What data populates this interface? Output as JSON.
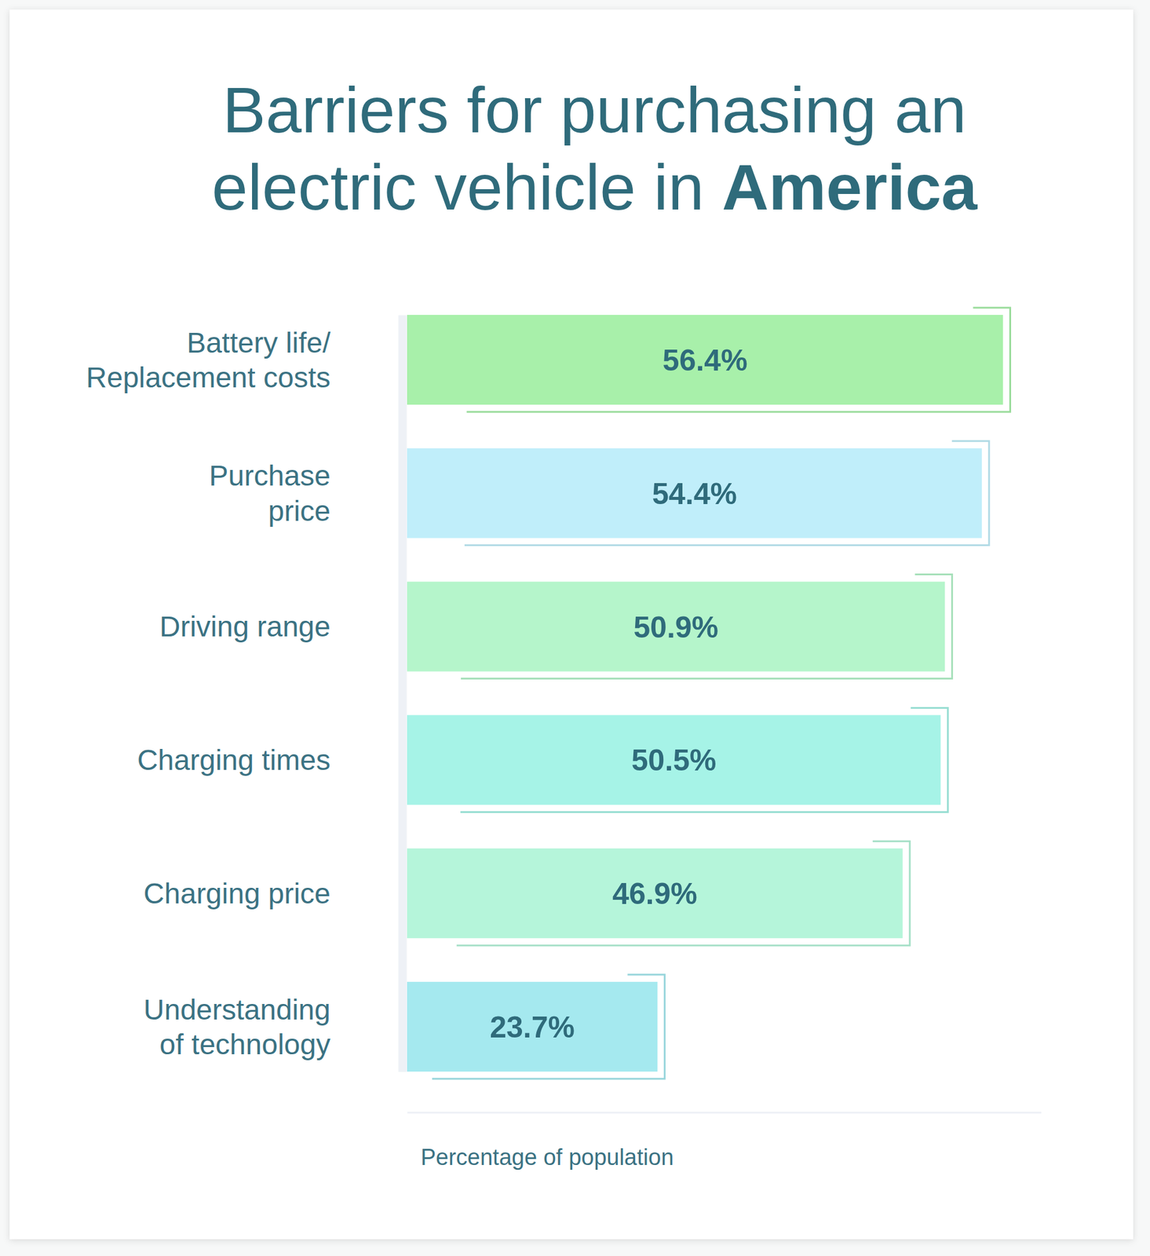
{
  "chart_data": {
    "type": "bar",
    "orientation": "horizontal",
    "title": "Barriers for purchasing an\nelectric vehicle in America",
    "categories": [
      "Battery life/\nReplacement costs",
      "Purchase\nprice",
      "Driving range",
      "Charging times",
      "Charging price",
      "Understanding\nof technology"
    ],
    "values": [
      56.4,
      54.4,
      50.9,
      50.5,
      46.9,
      23.7
    ],
    "value_labels": [
      "56.4%",
      "54.4%",
      "50.9%",
      "50.5%",
      "46.9%",
      "23.7%"
    ],
    "colors": [
      "#a8f0aa",
      "#c0eefa",
      "#b5f5cb",
      "#a6f3e7",
      "#b5f5da",
      "#a5e9ef"
    ],
    "xlabel": "Percentage of population",
    "xlim": [
      0,
      60
    ],
    "data_labels": true,
    "tick_labels": "y",
    "grid": false
  }
}
